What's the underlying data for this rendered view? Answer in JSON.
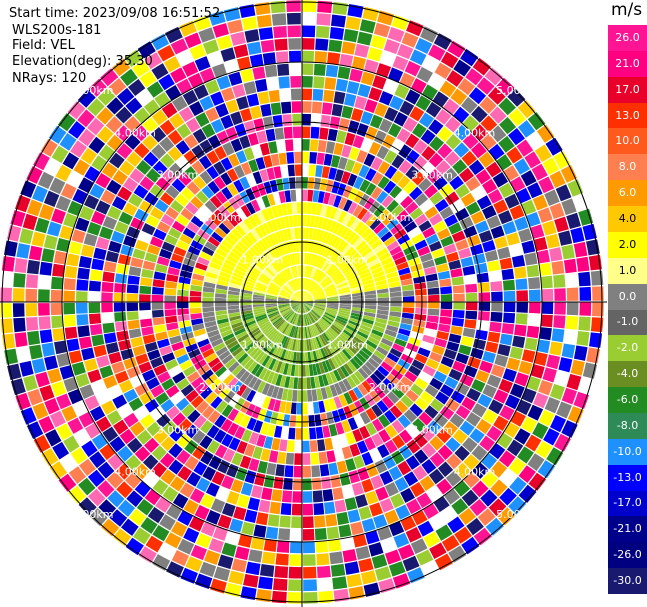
{
  "header": {
    "start_time": "Start time: 2023/09/08 16:51:52",
    "instrument": "WLS200s-181",
    "field": "Field: VEL",
    "elevation": "Elevation(deg): 35.30",
    "nrays": "NRays: 120"
  },
  "colorbar": {
    "unit": "m/s",
    "ticks": [
      "26.0",
      "21.0",
      "17.0",
      "13.0",
      "10.0",
      "8.0",
      "6.0",
      "4.0",
      "2.0",
      "1.0",
      "0.0",
      "-1.0",
      "-2.0",
      "-4.0",
      "-6.0",
      "-8.0",
      "-10.0",
      "-13.0",
      "-17.0",
      "-21.0",
      "-26.0",
      "-30.0"
    ],
    "colors": [
      "#ff1493",
      "#ff0080",
      "#e8002a",
      "#ff3000",
      "#ff5a1e",
      "#ff7f50",
      "#ff9a00",
      "#ffc800",
      "#ffff00",
      "#ffff8a",
      "#808080",
      "#646464",
      "#9acd32",
      "#6b8e23",
      "#228b22",
      "#2e8b57",
      "#1e90ff",
      "#0000ff",
      "#0000cd",
      "#00008b",
      "#000080",
      "#191970"
    ]
  },
  "range_labels": [
    {
      "text": "1.00km"
    },
    {
      "text": "2.00km"
    },
    {
      "text": "3.00km"
    },
    {
      "text": "4.00km"
    },
    {
      "text": "5.00km"
    }
  ]
}
